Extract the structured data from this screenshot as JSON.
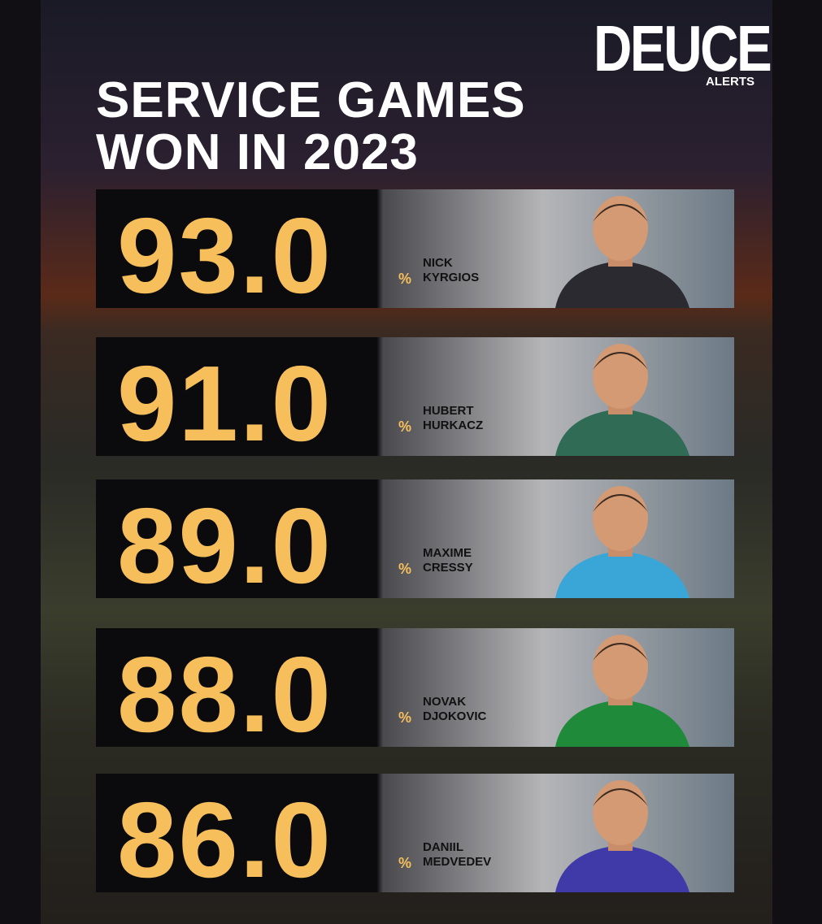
{
  "brand": {
    "name": "DEUCE",
    "sub": "ALERTS"
  },
  "title": {
    "line1": "SERVICE GAMES",
    "line2": "WON IN 2023"
  },
  "rows": [
    {
      "value": "93.0",
      "unit": "%",
      "first": "NICK",
      "last": "KYRGIOS"
    },
    {
      "value": "91.0",
      "unit": "%",
      "first": "HUBERT",
      "last": "HURKACZ"
    },
    {
      "value": "89.0",
      "unit": "%",
      "first": "MAXIME",
      "last": "CRESSY"
    },
    {
      "value": "88.0",
      "unit": "%",
      "first": "NOVAK",
      "last": "DJOKOVIC"
    },
    {
      "value": "86.0",
      "unit": "%",
      "first": "DANIIL",
      "last": "MEDVEDEV"
    }
  ]
}
